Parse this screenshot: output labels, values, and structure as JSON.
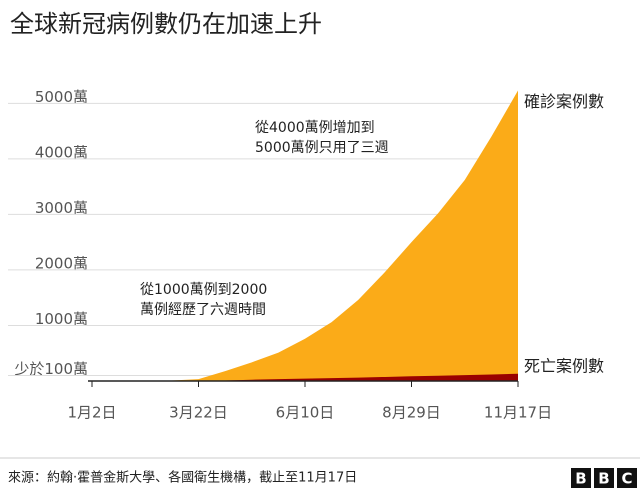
{
  "chart_data": {
    "type": "area",
    "title": "全球新冠病例數仍在加速上升",
    "categories": [
      "1月2日",
      null,
      null,
      null,
      "3月22日",
      null,
      null,
      null,
      "6月10日",
      null,
      null,
      null,
      "8月29日",
      null,
      null,
      null,
      "11月17日"
    ],
    "series": [
      {
        "name": "確診案例數",
        "color": "#fbab18",
        "values": [
          0,
          0,
          4,
          9,
          34,
          177,
          336,
          510,
          760,
          1060,
          1460,
          1960,
          2500,
          3020,
          3620,
          4400,
          5230
        ]
      },
      {
        "name": "死亡案例數",
        "color": "#990000",
        "values": [
          0,
          0,
          0,
          0,
          1,
          10,
          23,
          33,
          42,
          51,
          61,
          73,
          85,
          95,
          106,
          118,
          130
        ]
      }
    ],
    "ylim": [
      0,
      5600
    ],
    "yticks": [
      {
        "value": 100,
        "label": "少於100萬"
      },
      {
        "value": 1000,
        "label": "1000萬"
      },
      {
        "value": 2000,
        "label": "2000萬"
      },
      {
        "value": 3000,
        "label": "3000萬"
      },
      {
        "value": 4000,
        "label": "4000萬"
      },
      {
        "value": 5000,
        "label": "5000萬"
      }
    ],
    "grid": true,
    "annotations": [
      "從1000萬例到2000",
      "萬例經歷了六週時間",
      "從4000萬例增加到",
      "5000萬例只用了三週"
    ],
    "source": "來源：約翰·霍普金斯大學、各國衛生機構，截止至11月17日",
    "logo": [
      "B",
      "B",
      "C"
    ]
  }
}
